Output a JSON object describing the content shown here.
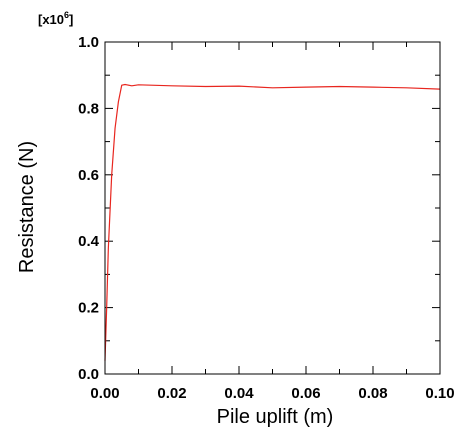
{
  "chart_data": {
    "type": "line",
    "title": "",
    "xlabel": "Pile uplift (m)",
    "ylabel": "Resistance (N)",
    "y_multiplier": {
      "prefix": "[x10",
      "exponent": "6",
      "suffix": "]"
    },
    "xlim": [
      0.0,
      0.1
    ],
    "ylim": [
      0.0,
      1.0
    ],
    "x_ticks": [
      "0.00",
      "0.02",
      "0.04",
      "0.06",
      "0.08",
      "0.10"
    ],
    "y_ticks": [
      "0.0",
      "0.2",
      "0.4",
      "0.6",
      "0.8",
      "1.0"
    ],
    "grid": false,
    "series": [
      {
        "color": "#e8261f",
        "x": [
          0.0,
          0.0005,
          0.001,
          0.002,
          0.003,
          0.004,
          0.005,
          0.006,
          0.008,
          0.01,
          0.02,
          0.03,
          0.04,
          0.05,
          0.06,
          0.07,
          0.08,
          0.09,
          0.1
        ],
        "y": [
          0.04,
          0.2,
          0.38,
          0.6,
          0.74,
          0.82,
          0.87,
          0.872,
          0.868,
          0.871,
          0.868,
          0.866,
          0.867,
          0.862,
          0.864,
          0.866,
          0.864,
          0.862,
          0.858
        ]
      }
    ]
  }
}
